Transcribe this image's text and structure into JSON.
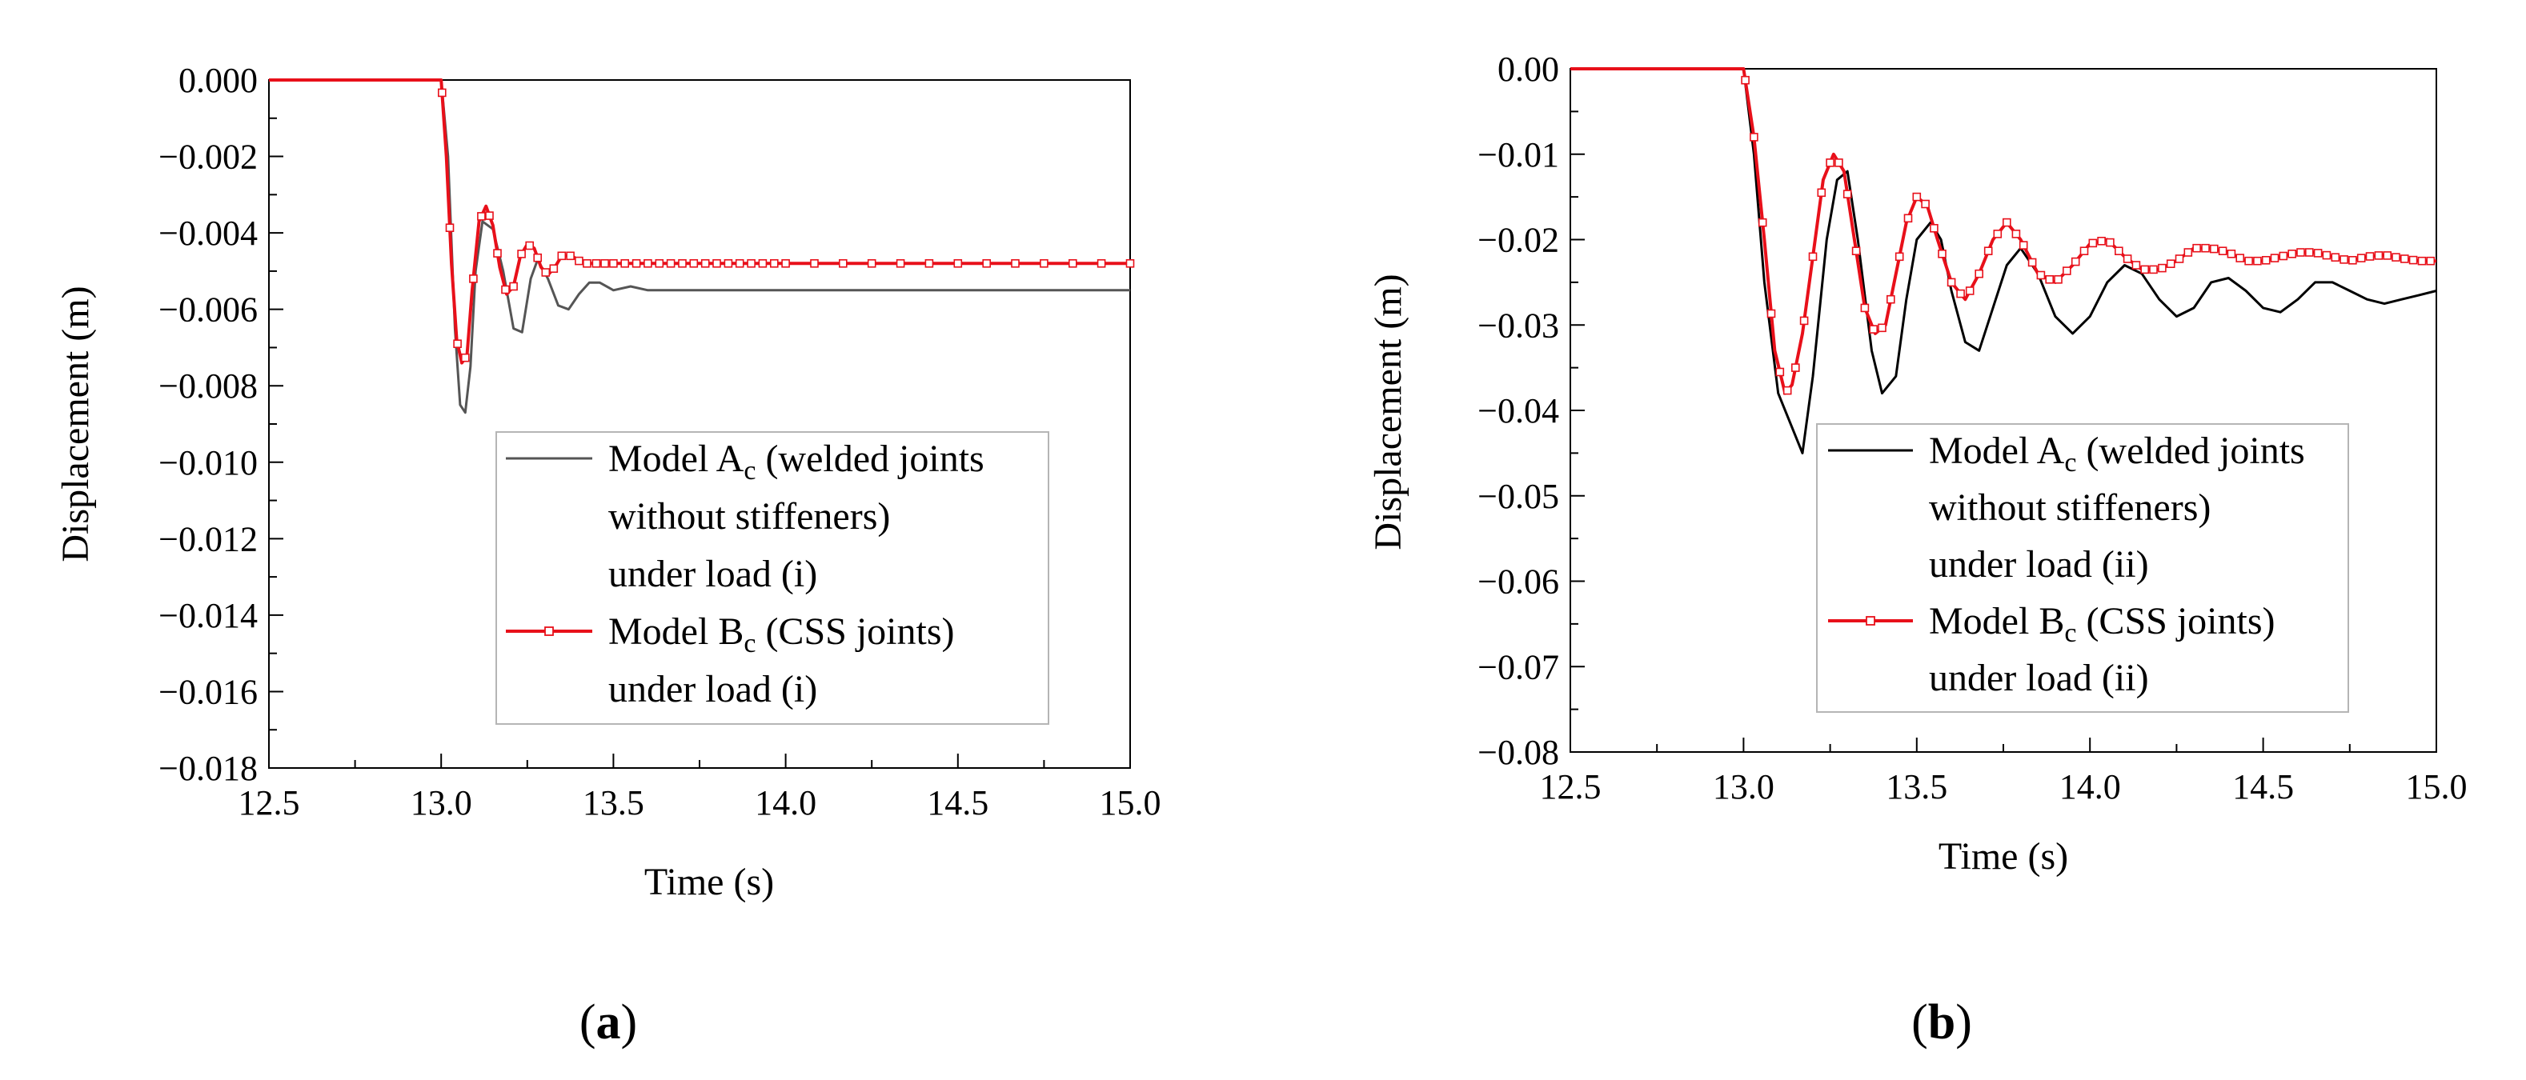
{
  "chart_data": [
    {
      "type": "line",
      "panel_label": "a",
      "xlabel": "Time (s)",
      "ylabel": "Displacement (m)",
      "xlim": [
        12.5,
        15.0
      ],
      "ylim": [
        -0.018,
        0.0
      ],
      "xticks": [
        12.5,
        13.0,
        13.5,
        14.0,
        14.5,
        15.0
      ],
      "xtick_labels": [
        "12.5",
        "13.0",
        "13.5",
        "14.0",
        "14.5",
        "15.0"
      ],
      "yticks": [
        0.0,
        -0.002,
        -0.004,
        -0.006,
        -0.008,
        -0.01,
        -0.012,
        -0.014,
        -0.016,
        -0.018
      ],
      "ytick_labels": [
        "0.000",
        "−0.002",
        "−0.004",
        "−0.006",
        "−0.008",
        "−0.010",
        "−0.012",
        "−0.014",
        "−0.016",
        "−0.018"
      ],
      "grid": false,
      "legend_position": "center-right",
      "series": [
        {
          "name": "Model A_c (welded joints without stiffeners) under load (i)",
          "legend_lines": [
            [
              "Model A",
              "c",
              " (welded joints"
            ],
            [
              "without stiffeners)"
            ],
            [
              "under load (i)"
            ]
          ],
          "color": "#555555",
          "marker": "none",
          "x": [
            12.5,
            13.0,
            13.02,
            13.04,
            13.055,
            13.07,
            13.085,
            13.1,
            13.12,
            13.15,
            13.18,
            13.21,
            13.235,
            13.26,
            13.28,
            13.31,
            13.34,
            13.37,
            13.4,
            13.43,
            13.46,
            13.5,
            13.55,
            13.6,
            13.7,
            13.8,
            14.0,
            14.5,
            15.0
          ],
          "y": [
            0.0,
            0.0,
            -0.002,
            -0.0065,
            -0.0085,
            -0.0087,
            -0.0075,
            -0.005,
            -0.0037,
            -0.0039,
            -0.005,
            -0.0065,
            -0.0066,
            -0.0052,
            -0.0047,
            -0.0052,
            -0.0059,
            -0.006,
            -0.0056,
            -0.0053,
            -0.0053,
            -0.0055,
            -0.0054,
            -0.0055,
            -0.0055,
            -0.0055,
            -0.0055,
            -0.0055,
            -0.0055
          ]
        },
        {
          "name": "Model B_c (CSS joints) under load (i)",
          "legend_lines": [
            [
              "Model B",
              "c",
              " (CSS joints)"
            ],
            [
              "under load (i)"
            ]
          ],
          "color": "#e8101a",
          "marker": "open-square",
          "x": [
            12.5,
            13.0,
            13.015,
            13.03,
            13.045,
            13.06,
            13.075,
            13.09,
            13.11,
            13.13,
            13.15,
            13.17,
            13.19,
            13.21,
            13.23,
            13.25,
            13.27,
            13.29,
            13.31,
            13.33,
            13.35,
            13.38,
            13.41,
            13.45,
            13.5,
            13.6,
            13.7,
            13.8,
            14.0,
            14.5,
            15.0
          ],
          "y": [
            0.0,
            0.0,
            -0.002,
            -0.0048,
            -0.0068,
            -0.0074,
            -0.0072,
            -0.0055,
            -0.0037,
            -0.0033,
            -0.0038,
            -0.0049,
            -0.0056,
            -0.0054,
            -0.0046,
            -0.0043,
            -0.0044,
            -0.0049,
            -0.0051,
            -0.0049,
            -0.0046,
            -0.0046,
            -0.0048,
            -0.0048,
            -0.0048,
            -0.0048,
            -0.0048,
            -0.0048,
            -0.0048,
            -0.0048,
            -0.0048
          ]
        }
      ]
    },
    {
      "type": "line",
      "panel_label": "b",
      "xlabel": "Time (s)",
      "ylabel": "Displacement (m)",
      "xlim": [
        12.5,
        15.0
      ],
      "ylim": [
        -0.08,
        0.0
      ],
      "xticks": [
        12.5,
        13.0,
        13.5,
        14.0,
        14.5,
        15.0
      ],
      "xtick_labels": [
        "12.5",
        "13.0",
        "13.5",
        "14.0",
        "14.5",
        "15.0"
      ],
      "yticks": [
        0.0,
        -0.01,
        -0.02,
        -0.03,
        -0.04,
        -0.05,
        -0.06,
        -0.07,
        -0.08
      ],
      "ytick_labels": [
        "0.00",
        "−0.01",
        "−0.02",
        "−0.03",
        "−0.04",
        "−0.05",
        "−0.06",
        "−0.07",
        "−0.08"
      ],
      "grid": false,
      "legend_position": "center-right",
      "series": [
        {
          "name": "Model A_c (welded joints without stiffeners) under load (ii)",
          "legend_lines": [
            [
              "Model A",
              "c",
              " (welded joints"
            ],
            [
              "without stiffeners)"
            ],
            [
              "under load (ii)"
            ]
          ],
          "color": "#000000",
          "marker": "none",
          "x": [
            12.5,
            13.0,
            13.03,
            13.06,
            13.1,
            13.13,
            13.17,
            13.2,
            13.24,
            13.27,
            13.3,
            13.33,
            13.37,
            13.4,
            13.44,
            13.47,
            13.5,
            13.54,
            13.57,
            13.6,
            13.64,
            13.68,
            13.72,
            13.76,
            13.8,
            13.85,
            13.9,
            13.95,
            14.0,
            14.05,
            14.1,
            14.15,
            14.2,
            14.25,
            14.3,
            14.35,
            14.4,
            14.45,
            14.5,
            14.55,
            14.6,
            14.65,
            14.7,
            14.75,
            14.8,
            14.85,
            14.9,
            14.95,
            15.0
          ],
          "y": [
            0.0,
            0.0,
            -0.01,
            -0.025,
            -0.038,
            -0.041,
            -0.045,
            -0.036,
            -0.02,
            -0.013,
            -0.012,
            -0.02,
            -0.033,
            -0.038,
            -0.036,
            -0.027,
            -0.02,
            -0.018,
            -0.02,
            -0.026,
            -0.032,
            -0.033,
            -0.028,
            -0.023,
            -0.021,
            -0.024,
            -0.029,
            -0.031,
            -0.029,
            -0.025,
            -0.023,
            -0.024,
            -0.027,
            -0.029,
            -0.028,
            -0.025,
            -0.0245,
            -0.026,
            -0.028,
            -0.0285,
            -0.027,
            -0.025,
            -0.025,
            -0.026,
            -0.027,
            -0.0275,
            -0.027,
            -0.0265,
            -0.026
          ]
        },
        {
          "name": "Model B_c (CSS joints) under load (ii)",
          "legend_lines": [
            [
              "Model B",
              "c",
              " (CSS joints)"
            ],
            [
              "under load (ii)"
            ]
          ],
          "color": "#e8101a",
          "marker": "open-square",
          "x": [
            12.5,
            13.0,
            13.03,
            13.06,
            13.09,
            13.12,
            13.14,
            13.17,
            13.2,
            13.23,
            13.26,
            13.29,
            13.32,
            13.35,
            13.38,
            13.41,
            13.44,
            13.47,
            13.5,
            13.53,
            13.56,
            13.6,
            13.64,
            13.68,
            13.72,
            13.76,
            13.8,
            13.85,
            13.9,
            13.95,
            14.0,
            14.05,
            14.1,
            14.15,
            14.2,
            14.25,
            14.3,
            14.35,
            14.4,
            14.45,
            14.5,
            14.55,
            14.6,
            14.65,
            14.7,
            14.75,
            14.8,
            14.85,
            14.9,
            14.95,
            15.0
          ],
          "y": [
            0.0,
            0.0,
            -0.008,
            -0.02,
            -0.033,
            -0.038,
            -0.037,
            -0.031,
            -0.022,
            -0.013,
            -0.01,
            -0.012,
            -0.02,
            -0.028,
            -0.031,
            -0.03,
            -0.024,
            -0.018,
            -0.015,
            -0.016,
            -0.02,
            -0.025,
            -0.027,
            -0.024,
            -0.02,
            -0.018,
            -0.02,
            -0.024,
            -0.025,
            -0.023,
            -0.0205,
            -0.02,
            -0.022,
            -0.0235,
            -0.0235,
            -0.0225,
            -0.021,
            -0.021,
            -0.0215,
            -0.0225,
            -0.0225,
            -0.022,
            -0.0215,
            -0.0215,
            -0.022,
            -0.0225,
            -0.022,
            -0.0218,
            -0.0222,
            -0.0225,
            -0.0225
          ]
        }
      ]
    }
  ]
}
